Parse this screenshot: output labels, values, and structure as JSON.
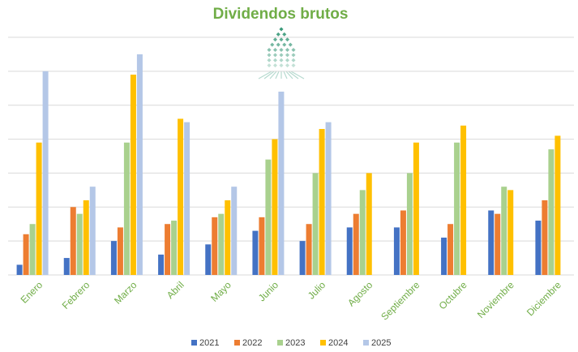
{
  "chart_data": {
    "type": "bar",
    "title": "Dividendos brutos",
    "xlabel": "",
    "ylabel": "",
    "ylim": [
      0,
      7
    ],
    "grid": true,
    "legend_position": "bottom",
    "categories": [
      "Enero",
      "Febrero",
      "Marzo",
      "Abril",
      "Mayo",
      "Junio",
      "Julio",
      "Agosto",
      "Septiembre",
      "Octubre",
      "Noviembre",
      "Diciembre"
    ],
    "series": [
      {
        "name": "2021",
        "color": "#4472c4",
        "values": [
          0.3,
          0.5,
          1.0,
          0.6,
          0.9,
          1.3,
          1.0,
          1.4,
          1.4,
          1.1,
          1.9,
          1.6
        ]
      },
      {
        "name": "2022",
        "color": "#ed7d31",
        "values": [
          1.2,
          2.0,
          1.4,
          1.5,
          1.7,
          1.7,
          1.5,
          1.8,
          1.9,
          1.5,
          1.8,
          2.2
        ]
      },
      {
        "name": "2023",
        "color": "#a9d18e",
        "values": [
          1.5,
          1.8,
          3.9,
          1.6,
          1.8,
          3.4,
          3.0,
          2.5,
          3.0,
          3.9,
          2.6,
          3.7
        ]
      },
      {
        "name": "2024",
        "color": "#ffc000",
        "values": [
          3.9,
          2.2,
          5.9,
          4.6,
          2.2,
          4.0,
          4.3,
          3.0,
          3.9,
          4.4,
          2.5,
          4.1
        ]
      },
      {
        "name": "2025",
        "color": "#b4c7e7",
        "values": [
          6.0,
          2.6,
          6.5,
          4.5,
          2.6,
          5.4,
          4.5,
          null,
          null,
          null,
          null,
          null
        ]
      }
    ]
  }
}
